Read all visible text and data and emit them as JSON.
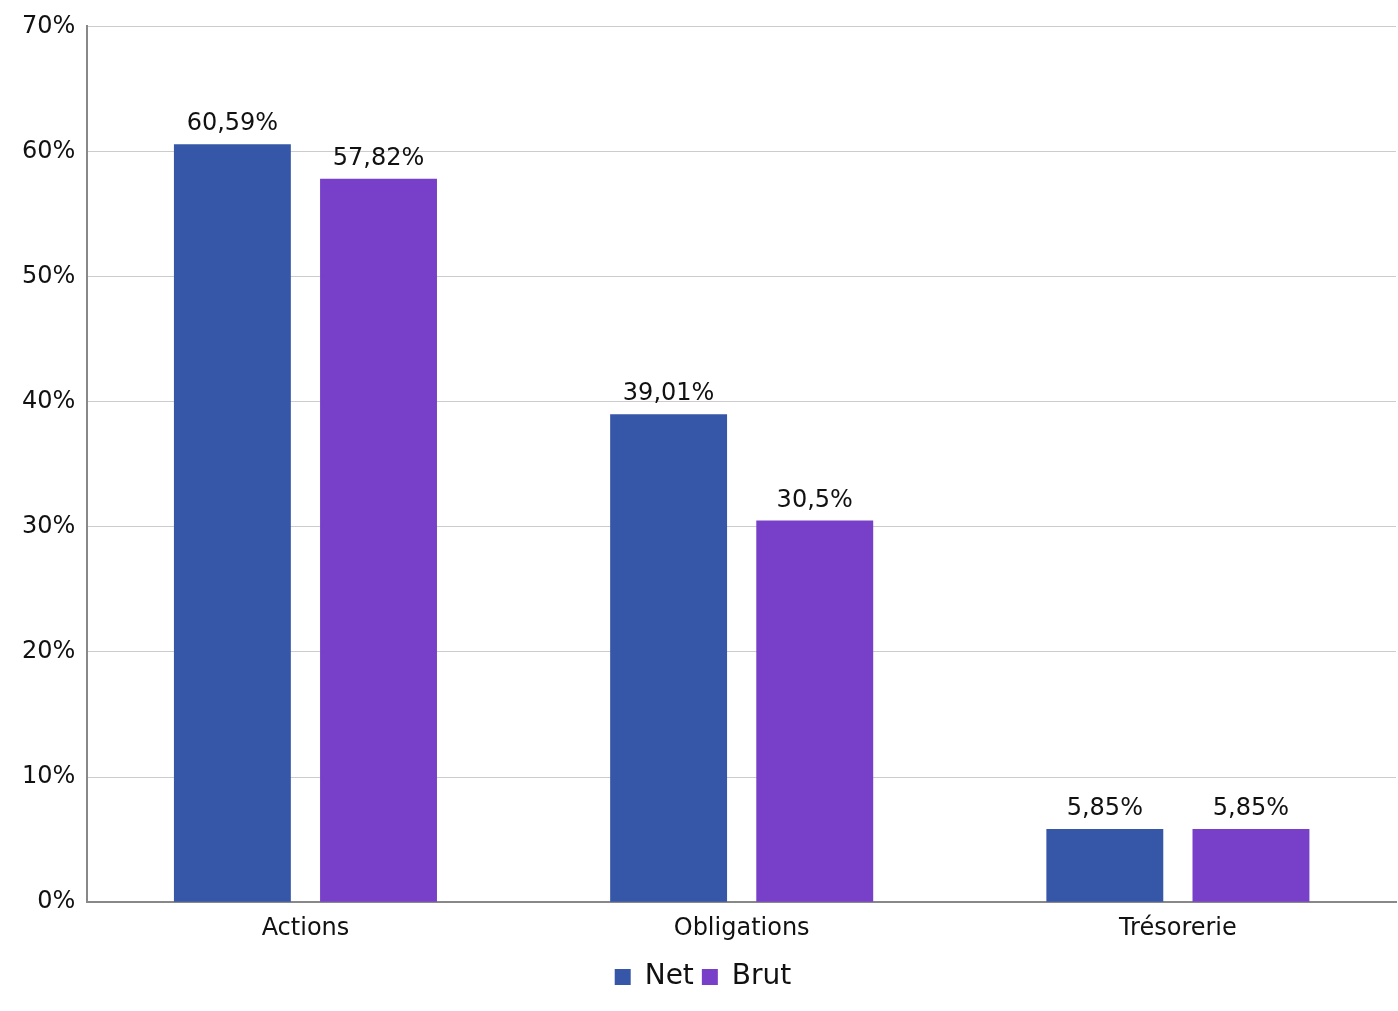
{
  "chart_data": {
    "type": "bar",
    "categories": [
      "Actions",
      "Obligations",
      "Trésorerie"
    ],
    "series": [
      {
        "name": "Net",
        "color": "#3656a8",
        "values": [
          60.59,
          39.01,
          5.85
        ],
        "value_labels": [
          "60,59%",
          "39,01%",
          "5,85%"
        ]
      },
      {
        "name": "Brut",
        "color": "#7840c8",
        "values": [
          57.82,
          30.5,
          5.85
        ],
        "value_labels": [
          "57,82%",
          "30,5%",
          "5,85%"
        ]
      }
    ],
    "ylim": [
      0,
      70
    ],
    "yticks": [
      {
        "value": 0,
        "label": "0%"
      },
      {
        "value": 10,
        "label": "10%"
      },
      {
        "value": 20,
        "label": "20%"
      },
      {
        "value": 30,
        "label": "30%"
      },
      {
        "value": 40,
        "label": "40%"
      },
      {
        "value": 50,
        "label": "50%"
      },
      {
        "value": 60,
        "label": "60%"
      },
      {
        "value": 70,
        "label": "70%"
      }
    ],
    "grid": "y",
    "legend": "bottom"
  }
}
